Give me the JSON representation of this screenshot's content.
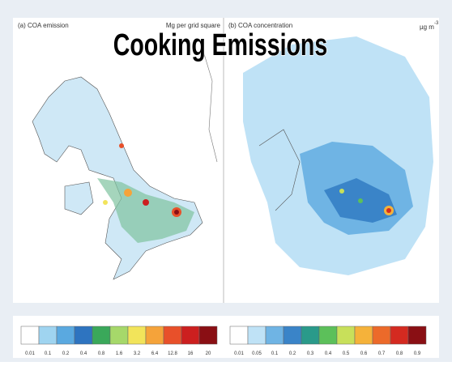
{
  "title": "Cooking Emissions",
  "panels": [
    {
      "label": "(a) COA emission",
      "units": "Mg per grid square",
      "colorbar": {
        "labels": [
          "0.01",
          "0.1",
          "0.2",
          "0.4",
          "0.8",
          "1.6",
          "3.2",
          "6.4",
          "12.8",
          "16",
          "20"
        ],
        "colors": [
          "#ffffff",
          "#9fd4f0",
          "#5aa9e0",
          "#2e74c0",
          "#3aa85a",
          "#a6d86a",
          "#f2e45a",
          "#f5a33a",
          "#e8502a",
          "#cc1f1f",
          "#8a0f14"
        ]
      }
    },
    {
      "label": "(b) COA concentration",
      "units": {
        "text": "µg m",
        "superscript": "-3"
      },
      "colorbar": {
        "labels": [
          "0.01",
          "0.05",
          "0.1",
          "0.2",
          "0.3",
          "0.4",
          "0.5",
          "0.6",
          "0.7",
          "0.8",
          "0.9"
        ],
        "colors": [
          "#ffffff",
          "#bfe2f6",
          "#6fb4e4",
          "#3a84c8",
          "#2a9a8a",
          "#5cc05a",
          "#c8e05a",
          "#f5b23a",
          "#ec6a2a",
          "#d42a20",
          "#8a0f14"
        ]
      }
    }
  ]
}
